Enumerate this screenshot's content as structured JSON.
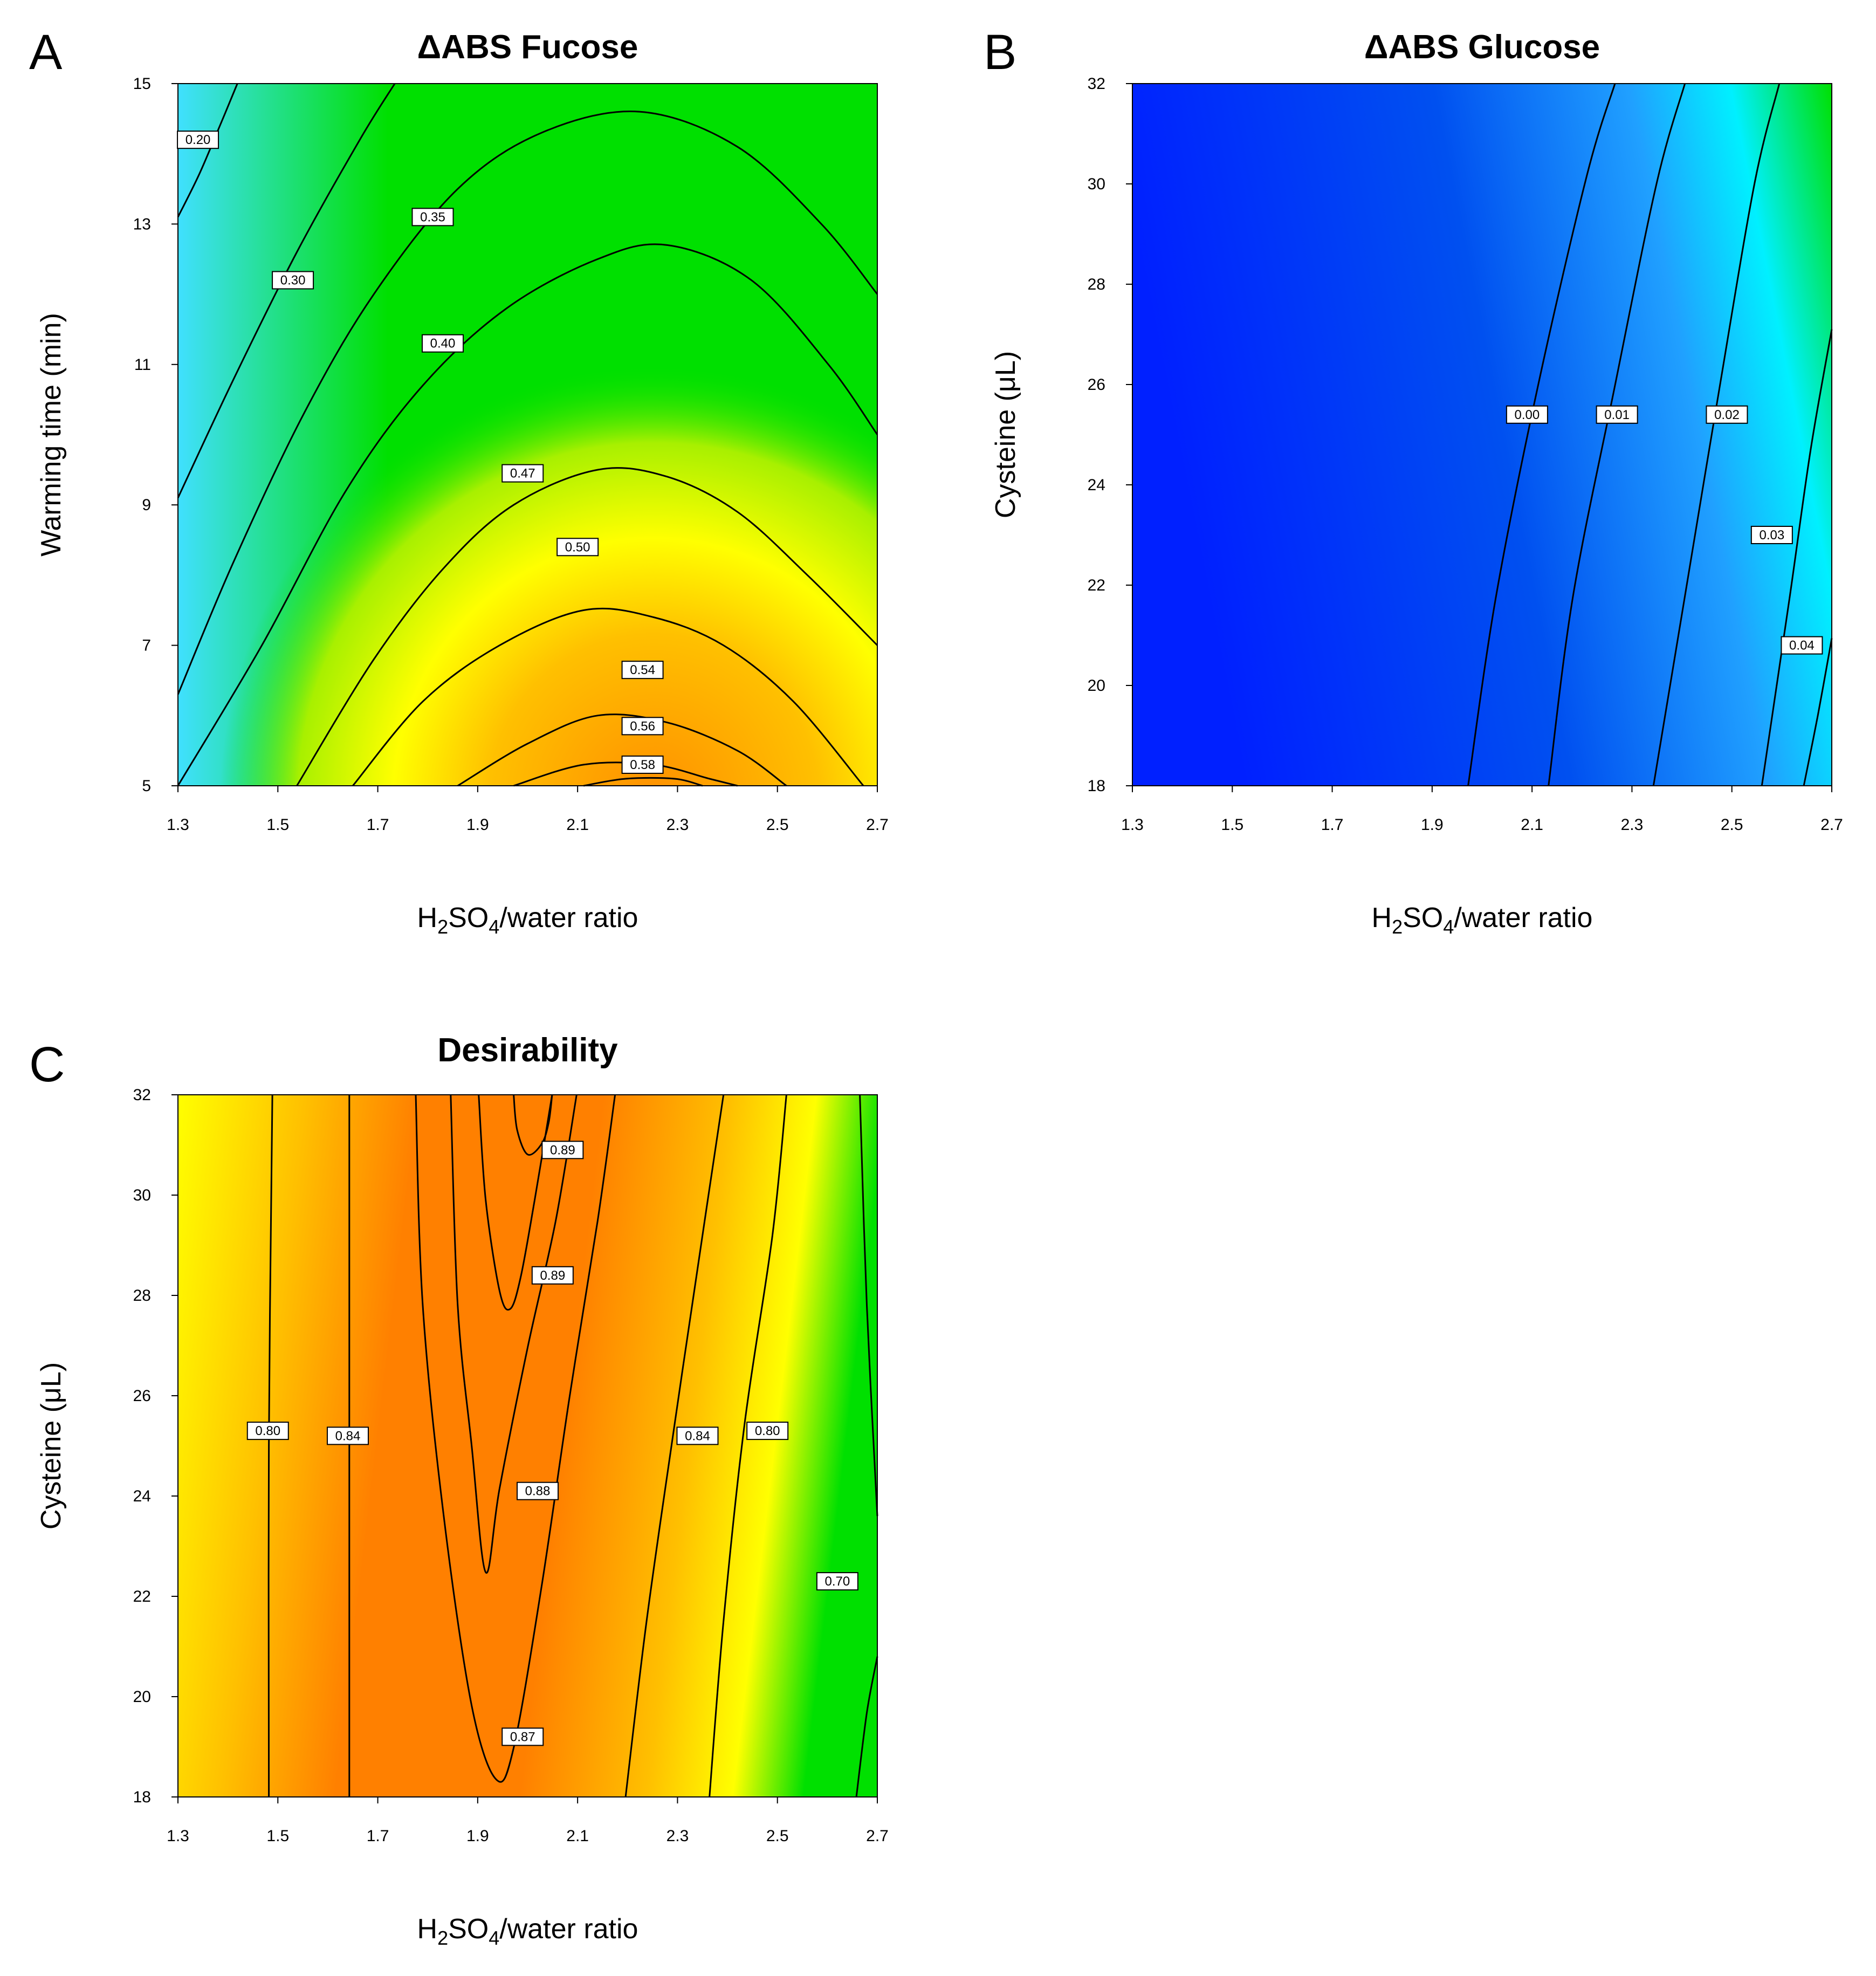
{
  "chart_data": [
    {
      "panel": "A",
      "type": "heatmap",
      "subtype": "contour",
      "title": "ΔABS  Fucose",
      "xlabel": {
        "base": "H",
        "sub1": "2",
        "mid": "SO",
        "sub2": "4",
        "tail": "/water ratio"
      },
      "ylabel": "Warming time  (min)",
      "xlim": [
        1.3,
        2.7
      ],
      "ylim": [
        5,
        15
      ],
      "xticks": [
        "1.3",
        "1.5",
        "1.7",
        "1.9",
        "2.1",
        "2.3",
        "2.5",
        "2.7"
      ],
      "yticks": [
        "5",
        "7",
        "9",
        "11",
        "13",
        "15"
      ],
      "colors": {
        "low": "#40e0ff",
        "mid": "#00e000",
        "high": "#ffff00",
        "max": "#ff9000"
      },
      "contours": [
        {
          "level": "0.20",
          "x": 1.34,
          "y": 14.2
        },
        {
          "level": "0.30",
          "x": 1.53,
          "y": 12.2
        },
        {
          "level": "0.35",
          "x": 1.81,
          "y": 13.1
        },
        {
          "level": "0.40",
          "x": 1.83,
          "y": 11.3
        },
        {
          "level": "0.47",
          "x": 1.99,
          "y": 9.45
        },
        {
          "level": "0.50",
          "x": 2.1,
          "y": 8.4
        },
        {
          "level": "0.54",
          "x": 2.23,
          "y": 6.65
        },
        {
          "level": "0.56",
          "x": 2.23,
          "y": 5.85
        },
        {
          "level": "0.58",
          "x": 2.23,
          "y": 5.3
        }
      ]
    },
    {
      "panel": "B",
      "type": "heatmap",
      "subtype": "contour",
      "title": "ΔABS  Glucose",
      "xlabel": {
        "base": "H",
        "sub1": "2",
        "mid": "SO",
        "sub2": "4",
        "tail": "/water ratio"
      },
      "ylabel": "Cysteine (μL)",
      "xlim": [
        1.3,
        2.7
      ],
      "ylim": [
        18,
        32
      ],
      "xticks": [
        "1.3",
        "1.5",
        "1.7",
        "1.9",
        "2.1",
        "2.3",
        "2.5",
        "2.7"
      ],
      "yticks": [
        "18",
        "20",
        "22",
        "24",
        "26",
        "28",
        "30",
        "32"
      ],
      "colors": {
        "low": "#0020ff",
        "mid": "#00f0ff",
        "high": "#00e000"
      },
      "contours": [
        {
          "level": "0.00",
          "x": 2.09,
          "y": 25.4
        },
        {
          "level": "0.01",
          "x": 2.27,
          "y": 25.4
        },
        {
          "level": "0.02",
          "x": 2.49,
          "y": 25.4
        },
        {
          "level": "0.03",
          "x": 2.58,
          "y": 23.0
        },
        {
          "level": "0.04",
          "x": 2.64,
          "y": 20.8
        }
      ]
    },
    {
      "panel": "C",
      "type": "heatmap",
      "subtype": "contour",
      "title": "Desirability",
      "xlabel": {
        "base": "H",
        "sub1": "2",
        "mid": "SO",
        "sub2": "4",
        "tail": "/water ratio"
      },
      "ylabel": "Cysteine (μL)",
      "xlim": [
        1.3,
        2.7
      ],
      "ylim": [
        18,
        32
      ],
      "xticks": [
        "1.3",
        "1.5",
        "1.7",
        "1.9",
        "2.1",
        "2.3",
        "2.5",
        "2.7"
      ],
      "yticks": [
        "18",
        "20",
        "22",
        "24",
        "26",
        "28",
        "30",
        "32"
      ],
      "colors": {
        "low": "#00e000",
        "mid": "#ffff00",
        "high": "#ff8000"
      },
      "contours": [
        {
          "level": "0.80",
          "x": 1.48,
          "y": 25.3
        },
        {
          "level": "0.84",
          "x": 1.64,
          "y": 25.2
        },
        {
          "level": "0.89",
          "x": 2.07,
          "y": 30.9
        },
        {
          "level": "0.89",
          "x": 2.05,
          "y": 28.4
        },
        {
          "level": "0.88",
          "x": 2.02,
          "y": 24.1
        },
        {
          "level": "0.87",
          "x": 1.99,
          "y": 19.2
        },
        {
          "level": "0.84",
          "x": 2.34,
          "y": 25.2
        },
        {
          "level": "0.80",
          "x": 2.48,
          "y": 25.3
        },
        {
          "level": "0.70",
          "x": 2.62,
          "y": 22.3
        }
      ]
    }
  ]
}
